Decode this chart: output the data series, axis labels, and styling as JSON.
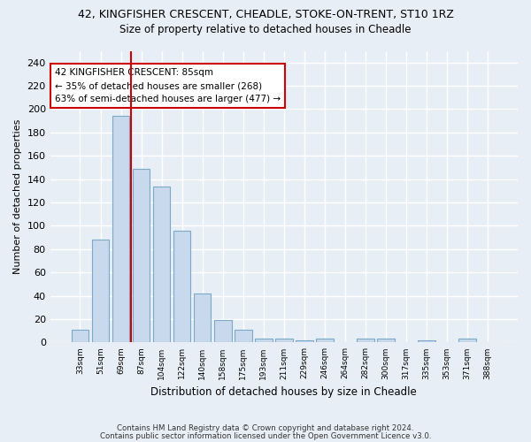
{
  "title_line1": "42, KINGFISHER CRESCENT, CHEADLE, STOKE-ON-TRENT, ST10 1RZ",
  "title_line2": "Size of property relative to detached houses in Cheadle",
  "xlabel": "Distribution of detached houses by size in Cheadle",
  "ylabel": "Number of detached properties",
  "bar_color": "#c8d8ed",
  "bar_edge_color": "#7aaac8",
  "categories": [
    "33sqm",
    "51sqm",
    "69sqm",
    "87sqm",
    "104sqm",
    "122sqm",
    "140sqm",
    "158sqm",
    "175sqm",
    "193sqm",
    "211sqm",
    "229sqm",
    "246sqm",
    "264sqm",
    "282sqm",
    "300sqm",
    "317sqm",
    "335sqm",
    "353sqm",
    "371sqm",
    "388sqm"
  ],
  "values": [
    11,
    88,
    194,
    149,
    134,
    96,
    42,
    19,
    11,
    3,
    3,
    2,
    3,
    0,
    3,
    3,
    0,
    2,
    0,
    3,
    0
  ],
  "vline_x": 2.5,
  "vline_color": "#cc0000",
  "annotation_line1": "42 KINGFISHER CRESCENT: 85sqm",
  "annotation_line2": "← 35% of detached houses are smaller (268)",
  "annotation_line3": "63% of semi-detached houses are larger (477) →",
  "ylim": [
    0,
    250
  ],
  "yticks": [
    0,
    20,
    40,
    60,
    80,
    100,
    120,
    140,
    160,
    180,
    200,
    220,
    240
  ],
  "footer1": "Contains HM Land Registry data © Crown copyright and database right 2024.",
  "footer2": "Contains public sector information licensed under the Open Government Licence v3.0.",
  "background_color": "#e8eef5",
  "plot_bg_color": "#e8eef5",
  "grid_color": "#ffffff"
}
